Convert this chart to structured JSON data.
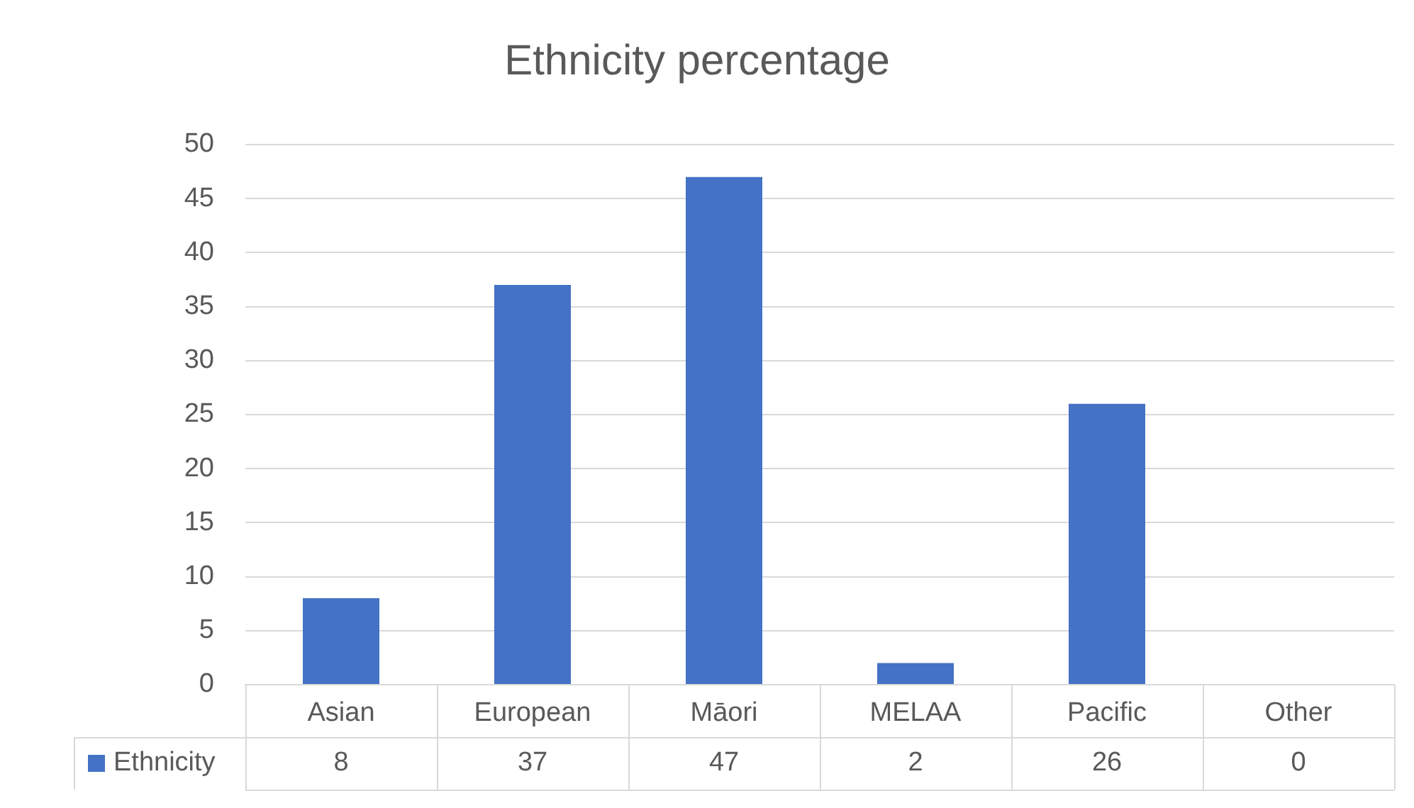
{
  "chart_data": {
    "type": "bar",
    "title": "Ethnicity percentage",
    "categories": [
      "Asian",
      "European",
      "Māori",
      "MELAA",
      "Pacific",
      "Other"
    ],
    "series": [
      {
        "name": "Ethnicity",
        "color": "#4472c4",
        "values": [
          8,
          37,
          47,
          2,
          26,
          0
        ]
      }
    ],
    "ylim": [
      0,
      50
    ],
    "yticks": [
      0,
      5,
      10,
      15,
      20,
      25,
      30,
      35,
      40,
      45,
      50
    ],
    "grid": "y",
    "legend": "bottom",
    "data_labels": true
  }
}
